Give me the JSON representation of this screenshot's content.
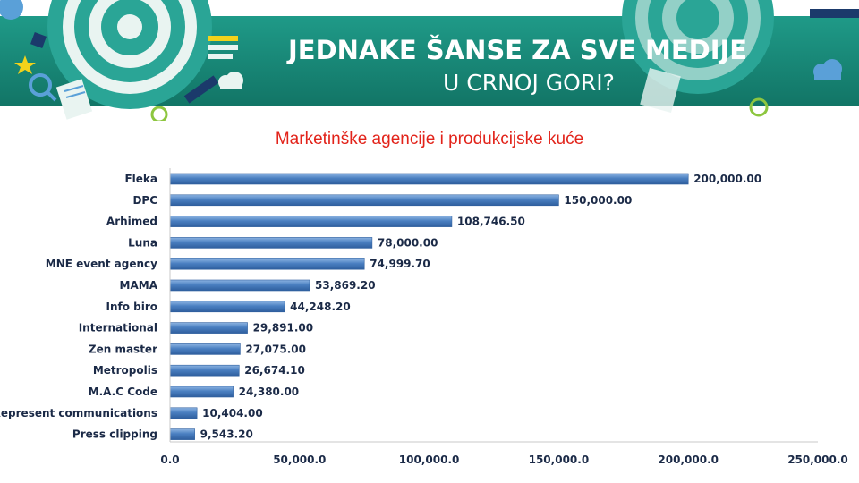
{
  "banner": {
    "title_line1": "JEDNAKE ŠANSE ZA SVE MEDIJE",
    "title_line2": "U CRNOJ GORI?",
    "colors": {
      "teal": "#1a8a7a",
      "teal_dark": "#0f6f62",
      "lime": "#8dc63f",
      "navy": "#1b3a6b",
      "light_blue": "#5aa0d8",
      "yellow": "#f2d21b"
    },
    "icons": [
      "target-icon",
      "star-icon",
      "magnifier-icon",
      "document-icon",
      "wifi-icon",
      "cloud-icon",
      "gear-icon",
      "pencil-icon"
    ]
  },
  "chart_data": {
    "type": "bar",
    "orientation": "horizontal",
    "title": "Marketinške agencije i produkcijske kuće",
    "xlabel": "",
    "ylabel": "",
    "categories": [
      "Fleka",
      "DPC",
      "Arhimed",
      "Luna",
      "MNE event agency",
      "MAMA",
      "Info biro",
      "International",
      "Zen master",
      "Metropolis",
      "M.A.C Code",
      "Represent communications",
      "Press clipping"
    ],
    "values": [
      200000.0,
      150000.0,
      108746.5,
      78000.0,
      74999.7,
      53869.2,
      44248.2,
      29891.0,
      27075.0,
      26674.1,
      24380.0,
      10404.0,
      9543.2
    ],
    "value_labels": [
      "200,000.00",
      "150,000.00",
      "108,746.50",
      "78,000.00",
      "74,999.70",
      "53,869.20",
      "44,248.20",
      "29,891.00",
      "27,075.00",
      "26,674.10",
      "24,380.00",
      "10,404.00",
      "9,543.20"
    ],
    "xlim": [
      0,
      250000
    ],
    "ticks": [
      0,
      50000,
      100000,
      150000,
      200000,
      250000
    ],
    "tick_labels": [
      "0.0",
      "50,000.0",
      "100,000.0",
      "150,000.0",
      "200,000.0",
      "250,000.0"
    ],
    "grid": false,
    "bar_color": "#4a7fc1",
    "bar_color_dark": "#2f5f9e"
  }
}
